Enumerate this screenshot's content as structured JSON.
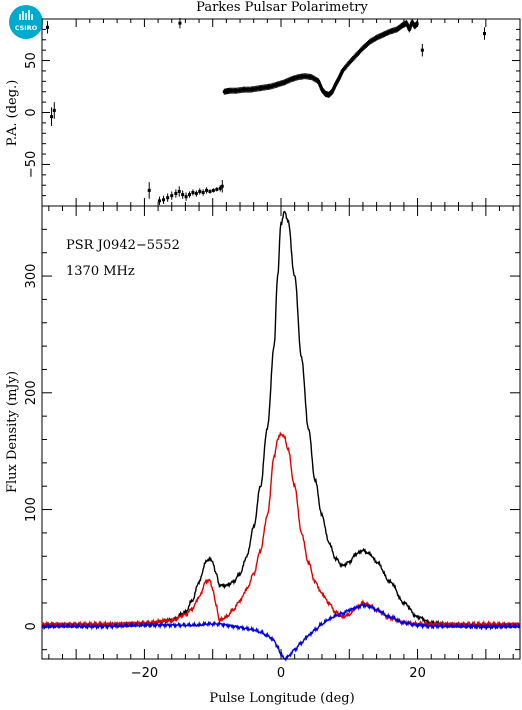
{
  "chart_data": [
    {
      "type": "scatter",
      "panel": "position-angle",
      "title": "Parkes Pulsar Polarimetry",
      "xlabel": "",
      "ylabel": "P.A. (deg.)",
      "xlim": [
        -35,
        35
      ],
      "ylim": [
        -90,
        90
      ],
      "yticks": [
        -50,
        0,
        50
      ],
      "points": [
        {
          "x": -34.2,
          "y": 82,
          "err": 6
        },
        {
          "x": -33.6,
          "y": -4,
          "err": 9
        },
        {
          "x": -33.2,
          "y": 2,
          "err": 8
        },
        {
          "x": -14.8,
          "y": 86,
          "err": 5
        },
        {
          "x": -19.3,
          "y": -75,
          "err": 8
        },
        {
          "x": -17.8,
          "y": -85,
          "err": 4
        },
        {
          "x": -17.2,
          "y": -84,
          "err": 4
        },
        {
          "x": -16.6,
          "y": -82,
          "err": 4
        },
        {
          "x": -16.0,
          "y": -80,
          "err": 4
        },
        {
          "x": -15.4,
          "y": -78,
          "err": 4
        },
        {
          "x": -14.9,
          "y": -76,
          "err": 5
        },
        {
          "x": -14.4,
          "y": -79,
          "err": 4
        },
        {
          "x": -13.9,
          "y": -81,
          "err": 4
        },
        {
          "x": -13.4,
          "y": -79,
          "err": 3
        },
        {
          "x": -12.9,
          "y": -77,
          "err": 3
        },
        {
          "x": -12.4,
          "y": -78,
          "err": 3
        },
        {
          "x": -11.9,
          "y": -76,
          "err": 3
        },
        {
          "x": -11.4,
          "y": -77,
          "err": 3
        },
        {
          "x": -10.9,
          "y": -75,
          "err": 3
        },
        {
          "x": -10.4,
          "y": -76,
          "err": 2
        },
        {
          "x": -9.9,
          "y": -75,
          "err": 2
        },
        {
          "x": -9.4,
          "y": -74,
          "err": 2
        },
        {
          "x": -8.9,
          "y": -73,
          "err": 3
        },
        {
          "x": -8.6,
          "y": -71,
          "err": 6
        },
        {
          "x": 20.7,
          "y": 60,
          "err": 6
        },
        {
          "x": 29.8,
          "y": 76,
          "err": 6
        }
      ],
      "pa_curve": {
        "x": [
          -8.3,
          -7.5,
          -6.5,
          -5.5,
          -4.5,
          -3.5,
          -2.5,
          -1.5,
          -0.5,
          0.5,
          1.5,
          2.5,
          3.5,
          4.5,
          5.5,
          6.0,
          6.5,
          7.0,
          7.5,
          8.0,
          8.5,
          9.0,
          10.0,
          11.0,
          12.0,
          13.0,
          14.0,
          15.0,
          16.0,
          17.0,
          17.8,
          18.4,
          18.8,
          19.2,
          19.6,
          20.0
        ],
        "y": [
          20,
          21,
          21,
          22,
          22,
          23,
          24,
          25,
          27,
          29,
          32,
          34,
          35,
          34,
          30,
          22,
          18,
          17,
          20,
          27,
          33,
          40,
          48,
          55,
          62,
          68,
          72,
          75,
          78,
          80,
          84,
          86,
          80,
          87,
          83,
          86
        ]
      }
    },
    {
      "type": "line",
      "panel": "flux-profile",
      "title": "",
      "xlabel": "Pulse Longitude (deg)",
      "ylabel": "Flux Density (mJy)",
      "xlim": [
        -35,
        35
      ],
      "ylim": [
        -28,
        360
      ],
      "xticks": [
        -20,
        0,
        20
      ],
      "yticks": [
        0,
        100,
        200,
        300
      ],
      "annotations": [
        "PSR J0942−5552",
        "1370 MHz"
      ],
      "x": [
        -35,
        -30,
        -25,
        -20,
        -16,
        -14,
        -13,
        -12,
        -11,
        -10.5,
        -10,
        -9.5,
        -9,
        -8,
        -7,
        -6,
        -5,
        -4,
        -3,
        -2,
        -1,
        -0.5,
        0,
        0.5,
        1,
        2,
        3,
        4,
        5,
        6,
        7,
        8,
        9,
        10,
        11,
        12,
        13,
        14,
        16,
        18,
        20,
        22,
        25,
        30,
        35
      ],
      "series": [
        {
          "name": "",
          "color": "#000000",
          "values": [
            0,
            1,
            1,
            2,
            5,
            12,
            22,
            38,
            55,
            58,
            55,
            45,
            35,
            35,
            38,
            45,
            60,
            85,
            120,
            170,
            240,
            300,
            345,
            355,
            348,
            300,
            230,
            170,
            125,
            95,
            72,
            58,
            52,
            55,
            62,
            65,
            62,
            55,
            38,
            20,
            8,
            3,
            1,
            0,
            0
          ]
        },
        {
          "name": "",
          "color": "#e00000",
          "values": [
            2,
            2,
            2,
            3,
            5,
            10,
            15,
            25,
            38,
            40,
            32,
            18,
            5,
            8,
            14,
            22,
            32,
            45,
            65,
            95,
            145,
            160,
            165,
            162,
            152,
            120,
            80,
            55,
            38,
            28,
            20,
            12,
            8,
            10,
            16,
            20,
            18,
            14,
            7,
            3,
            2,
            2,
            2,
            2,
            2
          ]
        },
        {
          "name": "",
          "color": "#0000e0",
          "values": [
            0,
            0,
            0,
            1,
            1,
            1,
            1,
            1,
            2,
            2,
            2,
            2,
            2,
            1,
            0,
            -1,
            -2,
            -3,
            -5,
            -8,
            -12,
            -18,
            -24,
            -28,
            -26,
            -20,
            -14,
            -8,
            -3,
            2,
            6,
            9,
            11,
            14,
            16,
            18,
            17,
            14,
            8,
            3,
            1,
            0,
            0,
            0,
            0
          ]
        }
      ]
    }
  ],
  "logo": {
    "text": "CSIRO",
    "color": "#00a9ce"
  }
}
